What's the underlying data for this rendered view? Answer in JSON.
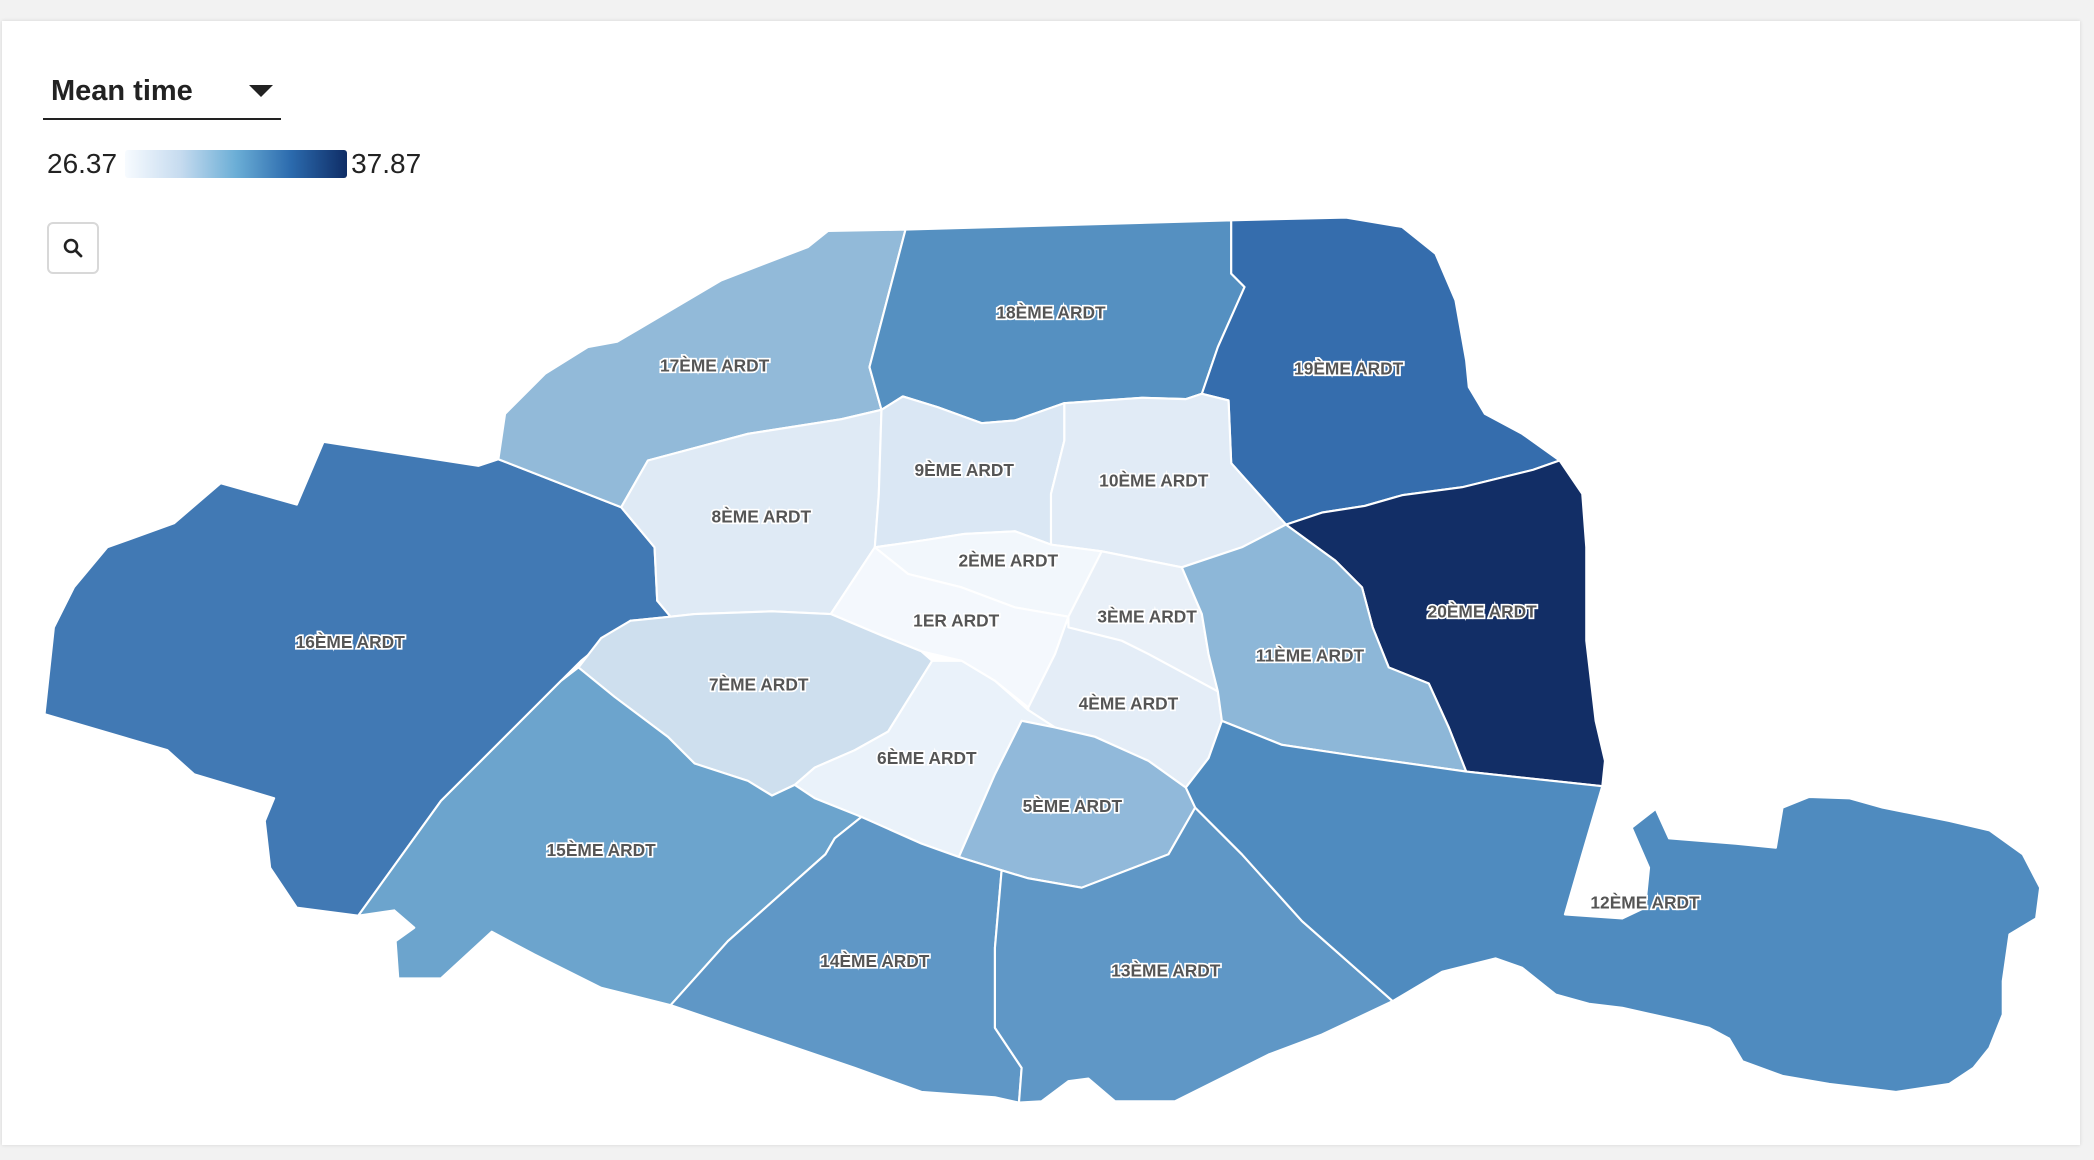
{
  "selector": {
    "value": "Mean time"
  },
  "legend": {
    "min": "26.37",
    "max": "37.87",
    "min_value": 26.37,
    "max_value": 37.87
  },
  "search": {
    "icon": "search-icon"
  },
  "districts": [
    {
      "id": "a16",
      "label": "16ÈME ARDT",
      "color": "#4179b4"
    },
    {
      "id": "a17",
      "label": "17ÈME ARDT",
      "color": "#92bad9"
    },
    {
      "id": "a18",
      "label": "18ÈME ARDT",
      "color": "#5590c1"
    },
    {
      "id": "a19",
      "label": "19ÈME ARDT",
      "color": "#356dad"
    },
    {
      "id": "a20",
      "label": "20ÈME ARDT",
      "color": "#122e66"
    },
    {
      "id": "a8",
      "label": "8ÈME ARDT",
      "color": "#dfeaf5"
    },
    {
      "id": "a9",
      "label": "9ÈME ARDT",
      "color": "#dae7f4"
    },
    {
      "id": "a10",
      "label": "10ÈME ARDT",
      "color": "#e1ebf6"
    },
    {
      "id": "a2",
      "label": "2ÈME ARDT",
      "color": "#f2f7fc"
    },
    {
      "id": "a1",
      "label": "1ER ARDT",
      "color": "#f4f8fd"
    },
    {
      "id": "a3",
      "label": "3ÈME ARDT",
      "color": "#e9f0f8"
    },
    {
      "id": "a4",
      "label": "4ÈME ARDT",
      "color": "#e4edf7"
    },
    {
      "id": "a7",
      "label": "7ÈME ARDT",
      "color": "#cedfee"
    },
    {
      "id": "a6",
      "label": "6ÈME ARDT",
      "color": "#eaf2fa"
    },
    {
      "id": "a5",
      "label": "5ÈME ARDT",
      "color": "#91b9da"
    },
    {
      "id": "a11",
      "label": "11ÈME ARDT",
      "color": "#8db7d8"
    },
    {
      "id": "a15",
      "label": "15ÈME ARDT",
      "color": "#6ca4cd"
    },
    {
      "id": "a14",
      "label": "14ÈME ARDT",
      "color": "#5f97c6"
    },
    {
      "id": "a13",
      "label": "13ÈME ARDT",
      "color": "#5f97c6"
    },
    {
      "id": "a12",
      "label": "12ÈME ARDT",
      "color": "#4f8bbf"
    }
  ]
}
